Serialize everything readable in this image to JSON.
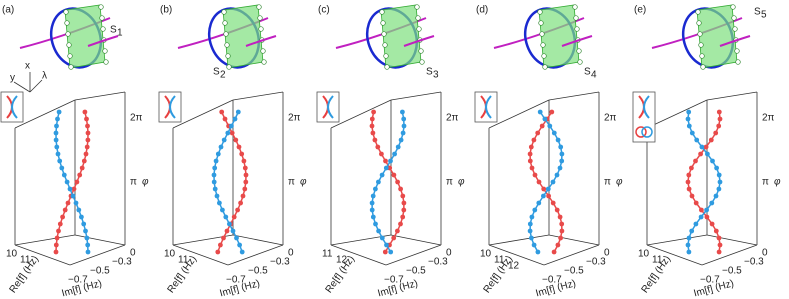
{
  "figure": {
    "coordinate_axes": [
      "y",
      "x",
      "λ"
    ],
    "panels": [
      {
        "label": "(a)",
        "surface": "S",
        "surface_index": "1",
        "phase_ticks": [
          "2π",
          "π",
          "0"
        ],
        "phase_label": "φ",
        "re_label": "Re[f] (Hz)",
        "im_label": "Im[f] (Hz)",
        "re_ticks": [
          "10",
          "11"
        ],
        "im_ticks": [
          "−0.7",
          "−0.5",
          "−0.3"
        ]
      },
      {
        "label": "(b)",
        "surface": "S",
        "surface_index": "2",
        "phase_ticks": [
          "2π",
          "π",
          "0"
        ],
        "phase_label": "φ",
        "re_label": "Re[f] (Hz)",
        "im_label": "Im[f] (Hz)",
        "re_ticks": [
          "10",
          "11"
        ],
        "im_ticks": [
          "−0.7",
          "−0.5",
          "−0.3"
        ]
      },
      {
        "label": "(c)",
        "surface": "S",
        "surface_index": "3",
        "phase_ticks": [
          "2π",
          "π",
          "0"
        ],
        "phase_label": "φ",
        "re_label": "Re[f] (Hz)",
        "im_label": "Im[f] (Hz)",
        "re_ticks": [
          "11",
          "12"
        ],
        "im_ticks": [
          "−0.7",
          "−0.5",
          "−0.3"
        ]
      },
      {
        "label": "(d)",
        "surface": "S",
        "surface_index": "4",
        "phase_ticks": [
          "2π",
          "π",
          "0"
        ],
        "phase_label": "φ",
        "re_label": "Re[f] (Hz)",
        "im_label": "Im[f] (Hz)",
        "re_ticks": [
          "10",
          "11",
          "12"
        ],
        "im_ticks": [
          "−0.7",
          "−0.5",
          "−0.3"
        ]
      },
      {
        "label": "(e)",
        "surface": "S",
        "surface_index": "5",
        "phase_ticks": [
          "2π",
          "π",
          "0"
        ],
        "phase_label": "φ",
        "re_label": "Re[f] (Hz)",
        "im_label": "Im[f] (Hz)",
        "re_ticks": [
          "10",
          "11"
        ],
        "im_ticks": [
          "−0.7",
          "−0.5",
          "−0.3"
        ]
      }
    ]
  }
}
